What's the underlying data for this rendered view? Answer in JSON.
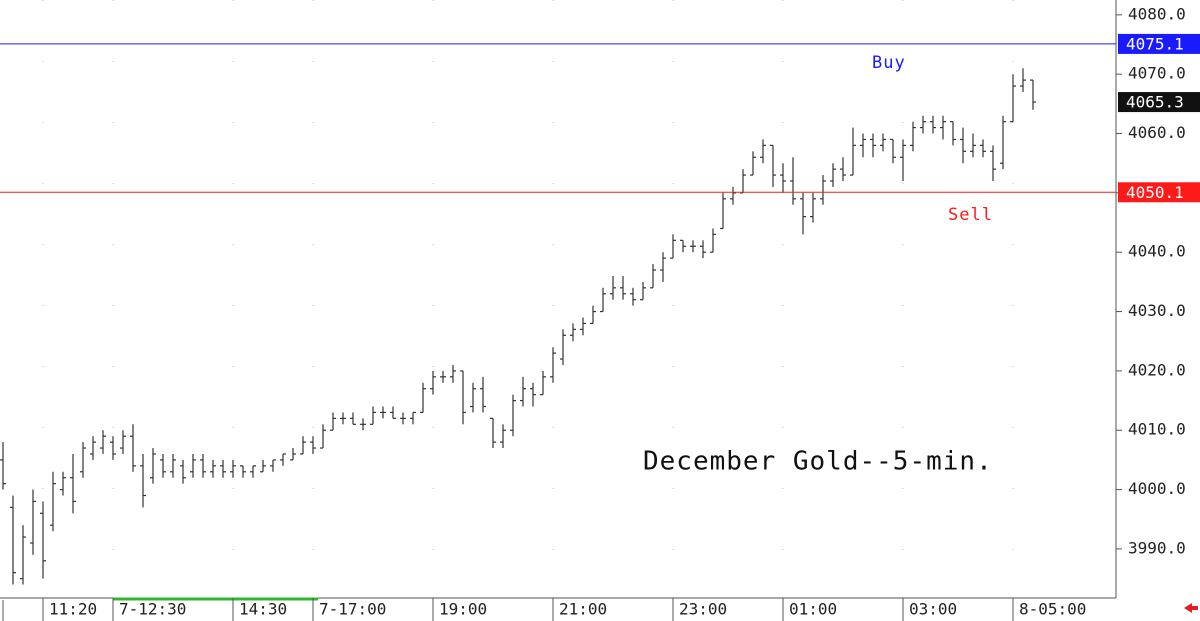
{
  "chart_data": {
    "type": "ohlc",
    "annotation": "December Gold--5-min.",
    "categories": [
      null,
      null,
      null,
      null,
      "11:20",
      null,
      null,
      null,
      null,
      null,
      null,
      "7-12:30",
      null,
      null,
      null,
      null,
      null,
      null,
      null,
      null,
      null,
      null,
      null,
      "14:30",
      null,
      null,
      null,
      null,
      null,
      null,
      null,
      "7-17:00",
      null,
      null,
      null,
      null,
      null,
      null,
      null,
      null,
      null,
      null,
      null,
      "19:00",
      null,
      null,
      null,
      null,
      null,
      null,
      null,
      null,
      null,
      null,
      null,
      "21:00",
      null,
      null,
      null,
      null,
      null,
      null,
      null,
      null,
      null,
      null,
      null,
      "23:00",
      null,
      null,
      null,
      null,
      null,
      null,
      null,
      null,
      null,
      null,
      "01:00",
      null,
      null,
      null,
      null,
      null,
      null,
      null,
      null,
      null,
      null,
      null,
      "03:00",
      null,
      null,
      null,
      null,
      null,
      null,
      null,
      null,
      null,
      null,
      "8-05:00",
      null,
      null
    ],
    "open": [
      4005,
      3997,
      3985,
      3991,
      3996,
      3994,
      4000,
      4002,
      4003,
      4006,
      4007,
      4008,
      4007,
      4009,
      4004,
      4002,
      4005,
      4003,
      4004,
      4003,
      4005,
      4003,
      4004,
      4003,
      4004,
      4003,
      4003,
      4004,
      4005,
      4005,
      4006,
      4008,
      4007,
      4010,
      4012,
      4012,
      4011,
      4011,
      4013,
      4013,
      4012,
      4012,
      4013,
      4017,
      4019,
      4019,
      4020,
      4014,
      4017,
      4012,
      4008,
      4010,
      4015,
      4017,
      4016,
      4019,
      4022,
      4026,
      4027,
      4028,
      4030,
      4033,
      4034,
      4033,
      4032,
      4034,
      4037,
      4039,
      4042,
      4041,
      4041,
      4040,
      4044,
      4049,
      4050,
      4053,
      4056,
      4058,
      4053,
      4052,
      4049,
      4046,
      4049,
      4052,
      4054,
      4053,
      4058,
      4059,
      4058,
      4059,
      4056,
      4058,
      4061,
      4062,
      4061,
      4062,
      4059,
      4057,
      4058,
      4057,
      4055,
      4062,
      4068,
      4069
    ],
    "high": [
      4008,
      3999,
      3994,
      4000,
      3998,
      4003,
      4003,
      4006,
      4008,
      4009,
      4010,
      4009,
      4010,
      4011,
      4006,
      4007,
      4006,
      4006,
      4005,
      4006,
      4006,
      4005,
      4005,
      4005,
      4004,
      4004,
      4005,
      4005,
      4006,
      4007,
      4009,
      4009,
      4011,
      4013,
      4013,
      4013,
      4012,
      4014,
      4014,
      4014,
      4013,
      4013,
      4018,
      4020,
      4020,
      4021,
      4020,
      4018,
      4019,
      4012,
      4011,
      4016,
      4019,
      4018,
      4020,
      4024,
      4027,
      4028,
      4029,
      4031,
      4034,
      4036,
      4036,
      4034,
      4035,
      4038,
      4040,
      4043,
      4042,
      4042,
      4042,
      4044,
      4050,
      4051,
      4054,
      4057,
      4059,
      4058,
      4055,
      4056,
      4050,
      4050,
      4053,
      4055,
      4056,
      4061,
      4060,
      4060,
      4060,
      4059,
      4059,
      4062,
      4063,
      4063,
      4063,
      4062,
      4061,
      4060,
      4059,
      4058,
      4063,
      4070,
      4071,
      4069
    ],
    "low": [
      4000,
      3984,
      3984,
      3989,
      3985,
      3993,
      3999,
      3996,
      4002,
      4005,
      4006,
      4005,
      4006,
      4003,
      3997,
      4001,
      4002,
      4002,
      4001,
      4002,
      4002,
      4002,
      4002,
      4002,
      4002,
      4002,
      4003,
      4003,
      4004,
      4005,
      4006,
      4006,
      4007,
      4010,
      4011,
      4011,
      4010,
      4011,
      4012,
      4012,
      4011,
      4011,
      4013,
      4016,
      4018,
      4018,
      4011,
      4013,
      4013,
      4007,
      4007,
      4009,
      4014,
      4014,
      4016,
      4018,
      4021,
      4025,
      4026,
      4028,
      4030,
      4032,
      4032,
      4031,
      4032,
      4034,
      4035,
      4039,
      4040,
      4040,
      4039,
      4040,
      4044,
      4048,
      4050,
      4053,
      4055,
      4051,
      4050,
      4048,
      4043,
      4045,
      4048,
      4051,
      4052,
      4053,
      4056,
      4056,
      4057,
      4055,
      4052,
      4057,
      4060,
      4060,
      4059,
      4058,
      4055,
      4056,
      4056,
      4052,
      4054,
      4062,
      4067,
      4064
    ],
    "close": [
      4001,
      3986,
      3992,
      3998,
      3988,
      4001,
      4002,
      3998,
      4007,
      4008,
      4009,
      4006,
      4009,
      4004,
      3999,
      4006,
      4003,
      4005,
      4002,
      4005,
      4003,
      4004,
      4003,
      4004,
      4003,
      4004,
      4004,
      4005,
      4006,
      4006,
      4008,
      4007,
      4010,
      4012,
      4012,
      4011,
      4011,
      4013,
      4013,
      4012,
      4012,
      4013,
      4017,
      4019,
      4019,
      4020,
      4013,
      4017,
      4014,
      4008,
      4010,
      4015,
      4017,
      4016,
      4019,
      4023,
      4026,
      4027,
      4028,
      4030,
      4033,
      4034,
      4033,
      4032,
      4034,
      4037,
      4039,
      4042,
      4041,
      4041,
      4040,
      4043,
      4049,
      4050,
      4053,
      4056,
      4058,
      4053,
      4052,
      4049,
      4046,
      4049,
      4052,
      4054,
      4053,
      4058,
      4059,
      4058,
      4059,
      4056,
      4058,
      4061,
      4062,
      4061,
      4062,
      4059,
      4057,
      4058,
      4057,
      4054,
      4062,
      4068,
      4069,
      4065.3
    ],
    "bar_color": "#333333",
    "ylim": [
      3981.9,
      4082.5
    ],
    "yticks": [
      {
        "value": 3990,
        "label": "3990.0"
      },
      {
        "value": 4000,
        "label": "4000.0"
      },
      {
        "value": 4010,
        "label": "4010.0"
      },
      {
        "value": 4020,
        "label": "4020.0"
      },
      {
        "value": 4030,
        "label": "4030.0"
      },
      {
        "value": 4040,
        "label": "4040.0"
      },
      {
        "value": 4050,
        "label": "4050.0"
      },
      {
        "value": 4060,
        "label": "4060.0"
      },
      {
        "value": 4070,
        "label": "4070.0"
      },
      {
        "value": 4080,
        "label": "4080.0"
      }
    ],
    "xgrid": true,
    "levels": [
      {
        "label": "Buy",
        "value": 4075.1,
        "color": "#1a1aff"
      },
      {
        "label": "Sell",
        "value": 4050.1,
        "color": "#ff1a1a"
      }
    ]
  }
}
